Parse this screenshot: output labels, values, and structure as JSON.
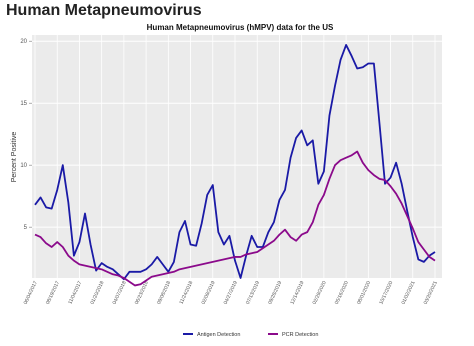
{
  "header": {
    "title": "Human Metapneumovirus"
  },
  "chart_data": {
    "type": "line",
    "title": "Human Metapneumovirus (hMPV) data for the US",
    "y_label": "Percent Positive",
    "categories": [
      "06/04/2017",
      null,
      null,
      null,
      "08/19/2017",
      null,
      null,
      null,
      "11/04/2017",
      null,
      null,
      null,
      "01/20/2018",
      null,
      null,
      null,
      "04/07/2018",
      null,
      null,
      null,
      "06/23/2018",
      null,
      null,
      null,
      "09/08/2018",
      null,
      null,
      null,
      "11/24/2018",
      null,
      null,
      null,
      "02/09/2019",
      null,
      null,
      null,
      "04/27/2019",
      null,
      null,
      null,
      "07/13/2019",
      null,
      null,
      null,
      "09/28/2019",
      null,
      null,
      null,
      "12/14/2019",
      null,
      null,
      null,
      "02/29/2020",
      null,
      null,
      null,
      "05/16/2020",
      null,
      null,
      null,
      "08/01/2020",
      null,
      null,
      null,
      "10/17/2020",
      null,
      null,
      null,
      "01/02/2021",
      null,
      null,
      null,
      "03/20/2021"
    ],
    "series": [
      {
        "name": "Antigen Detection",
        "color": "#1a1aa6",
        "values": [
          6.8,
          7.4,
          6.6,
          6.5,
          8.0,
          10.0,
          7.0,
          2.7,
          3.8,
          6.1,
          3.6,
          1.5,
          2.1,
          1.8,
          1.6,
          1.2,
          0.8,
          1.4,
          1.4,
          1.4,
          1.6,
          2.0,
          2.6,
          2.0,
          1.4,
          2.2,
          4.6,
          5.5,
          3.6,
          3.5,
          5.3,
          7.6,
          8.4,
          4.6,
          3.6,
          4.3,
          2.3,
          0.9,
          2.7,
          4.3,
          3.4,
          3.4,
          4.6,
          5.4,
          7.2,
          8.0,
          10.6,
          12.2,
          12.8,
          11.6,
          12.0,
          8.5,
          9.5,
          14.0,
          16.4,
          18.5,
          19.7,
          18.8,
          17.8,
          17.9,
          18.2,
          18.2,
          13.4,
          8.5,
          9.0,
          10.2,
          8.5,
          6.3,
          4.2,
          2.4,
          2.2,
          2.7,
          3.0
        ]
      },
      {
        "name": "PCR Detection",
        "color": "#8b0a8b",
        "values": [
          4.4,
          4.2,
          3.7,
          3.4,
          3.8,
          3.4,
          2.7,
          2.3,
          2.0,
          1.9,
          1.8,
          1.7,
          1.6,
          1.4,
          1.2,
          1.1,
          0.9,
          0.6,
          0.3,
          0.4,
          0.7,
          1.0,
          1.1,
          1.2,
          1.3,
          1.4,
          1.6,
          1.7,
          1.8,
          1.9,
          2.0,
          2.1,
          2.2,
          2.3,
          2.4,
          2.5,
          2.6,
          2.6,
          2.8,
          2.9,
          3.0,
          3.3,
          3.6,
          3.9,
          4.4,
          4.8,
          4.2,
          3.9,
          4.4,
          4.6,
          5.4,
          6.8,
          7.6,
          8.9,
          10.0,
          10.4,
          10.6,
          10.8,
          11.1,
          10.2,
          9.6,
          9.2,
          8.9,
          8.8,
          8.3,
          7.7,
          6.9,
          5.9,
          4.9,
          3.8,
          3.2,
          2.6,
          2.3
        ]
      }
    ],
    "ylim": [
      0.9,
      20.5
    ],
    "yticks": [
      5,
      10,
      15,
      20
    ],
    "grid": true,
    "legend": "bottom"
  }
}
